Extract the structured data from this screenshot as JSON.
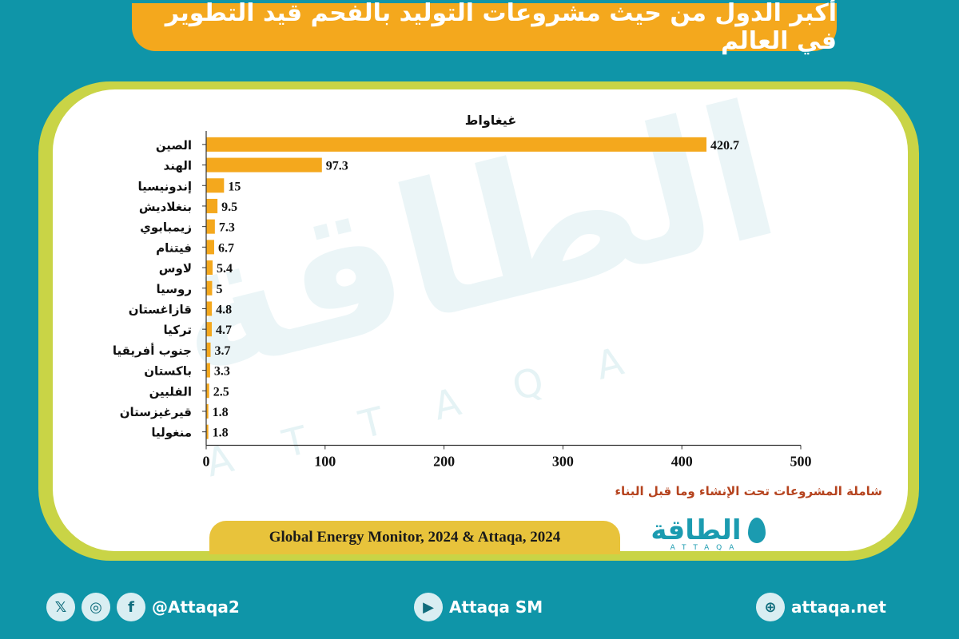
{
  "header": {
    "title": "أكبر الدول من حيث مشروعات التوليد بالفحم قيد التطوير في العالم"
  },
  "chart_data": {
    "type": "bar",
    "orientation": "horizontal",
    "title": "غيغاواط",
    "categories": [
      "الصين",
      "الهند",
      "إندونيسيا",
      "بنغلاديش",
      "زيمبابوي",
      "فيتنام",
      "لاوس",
      "روسيا",
      "قازاغستان",
      "تركيا",
      "جنوب أفريقيا",
      "باكستان",
      "الفلبين",
      "قيرغيزستان",
      "منغوليا"
    ],
    "values": [
      420.7,
      97.3,
      15,
      9.5,
      7.3,
      6.7,
      5.4,
      5,
      4.8,
      4.7,
      3.7,
      3.3,
      2.5,
      1.8,
      1.8
    ],
    "value_labels": [
      "420.7",
      "97.3",
      "15",
      "9.5",
      "7.3",
      "6.7",
      "5.4",
      "5",
      "4.8",
      "4.7",
      "3.7",
      "3.3",
      "2.5",
      "1.8",
      "1.8"
    ],
    "xlim": [
      0,
      500
    ],
    "xticks": [
      "0",
      "100",
      "200",
      "300",
      "400",
      "500"
    ],
    "grid": false,
    "bar_color": "#f4a81d"
  },
  "note": "شاملة المشروعات تحت الإنشاء وما قبل البناء",
  "source": "Global Energy Monitor, 2024 & Attaqa, 2024",
  "logo": {
    "arabic": "الطاقة",
    "latin": "ATTAQA"
  },
  "footer": {
    "social_handle": "@Attaqa2",
    "youtube": "Attaqa SM",
    "website": "attaqa.net"
  },
  "colors": {
    "background": "#0f95a8",
    "banner": "#f4a81d",
    "frame": "#c9d446",
    "note": "#b5431e"
  }
}
